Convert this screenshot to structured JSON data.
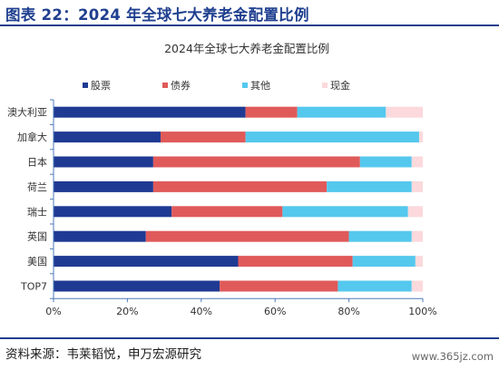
{
  "header": {
    "title": "图表 22：2024 年全球七大养老金配置比例"
  },
  "footer": {
    "source": "资料来源：韦莱韬悦，申万宏源研究",
    "watermark": "www.365jz.com"
  },
  "colors": {
    "header": "#1f3f8f",
    "stocks": "#1f3a93",
    "bonds": "#e05a5a",
    "others": "#55c8ee",
    "cash": "#fbd9dc",
    "axis": "#4d7ab8"
  },
  "chart_data": {
    "type": "bar",
    "orientation": "horizontal",
    "stacked": true,
    "title": "2024年全球七大养老金配置比例",
    "legend_position": "top",
    "grid": false,
    "categories": [
      "澳大利亚",
      "加拿大",
      "日本",
      "荷兰",
      "瑞士",
      "英国",
      "美国",
      "TOP7"
    ],
    "series": [
      {
        "name": "股票",
        "color": "#1f3a93",
        "values": [
          52,
          29,
          27,
          27,
          32,
          25,
          50,
          45
        ]
      },
      {
        "name": "债券",
        "color": "#e05a5a",
        "values": [
          14,
          23,
          56,
          47,
          30,
          55,
          31,
          32
        ]
      },
      {
        "name": "其他",
        "color": "#55c8ee",
        "values": [
          24,
          47,
          14,
          23,
          34,
          17,
          17,
          20
        ]
      },
      {
        "name": "现金",
        "color": "#fbd9dc",
        "values": [
          10,
          1,
          3,
          3,
          4,
          3,
          2,
          3
        ]
      }
    ],
    "xlim": [
      0,
      100
    ],
    "x_ticks": [
      "0%",
      "20%",
      "40%",
      "60%",
      "80%",
      "100%"
    ]
  }
}
